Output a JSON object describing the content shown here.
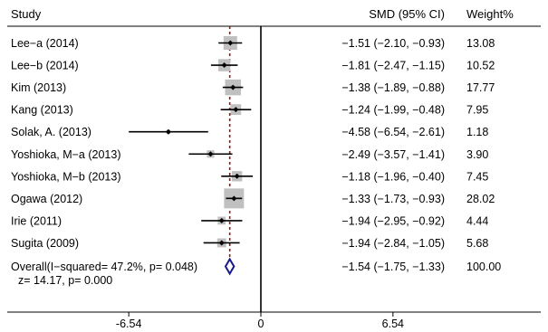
{
  "chart_data": {
    "type": "forest",
    "headers": {
      "study": "Study",
      "effect": "SMD (95% CI)",
      "weight": "Weight%"
    },
    "xlim": [
      -6.54,
      6.54
    ],
    "ticks": [
      {
        "value": -6.54,
        "label": "-6.54"
      },
      {
        "value": 0,
        "label": "0"
      },
      {
        "value": 6.54,
        "label": "6.54"
      }
    ],
    "null_line": 0,
    "overall_line": -1.54,
    "studies": [
      {
        "label": "Lee−a (2014)",
        "smd": -1.51,
        "lower": -2.1,
        "upper": -0.93,
        "ci_text": "−1.51 (−2.10, −0.93)",
        "weight": 13.08,
        "weight_text": "13.08"
      },
      {
        "label": "Lee−b (2014)",
        "smd": -1.81,
        "lower": -2.47,
        "upper": -1.15,
        "ci_text": "−1.81 (−2.47, −1.15)",
        "weight": 10.52,
        "weight_text": "10.52"
      },
      {
        "label": "Kim (2013)",
        "smd": -1.38,
        "lower": -1.89,
        "upper": -0.88,
        "ci_text": "−1.38 (−1.89, −0.88)",
        "weight": 17.77,
        "weight_text": "17.77"
      },
      {
        "label": "Kang (2013)",
        "smd": -1.24,
        "lower": -1.99,
        "upper": -0.48,
        "ci_text": "−1.24 (−1.99, −0.48)",
        "weight": 7.95,
        "weight_text": "7.95"
      },
      {
        "label": "Solak, A. (2013)",
        "smd": -4.58,
        "lower": -6.54,
        "upper": -2.61,
        "ci_text": "−4.58 (−6.54, −2.61)",
        "weight": 1.18,
        "weight_text": "1.18"
      },
      {
        "label": "Yoshioka, M−a (2013)",
        "smd": -2.49,
        "lower": -3.57,
        "upper": -1.41,
        "ci_text": "−2.49 (−3.57, −1.41)",
        "weight": 3.9,
        "weight_text": "3.90"
      },
      {
        "label": "Yoshioka, M−b (2013)",
        "smd": -1.18,
        "lower": -1.96,
        "upper": -0.4,
        "ci_text": "−1.18 (−1.96, −0.40)",
        "weight": 7.45,
        "weight_text": "7.45"
      },
      {
        "label": "Ogawa (2012)",
        "smd": -1.33,
        "lower": -1.73,
        "upper": -0.93,
        "ci_text": "−1.33 (−1.73, −0.93)",
        "weight": 28.02,
        "weight_text": "28.02"
      },
      {
        "label": "Irie (2011)",
        "smd": -1.94,
        "lower": -2.95,
        "upper": -0.92,
        "ci_text": "−1.94 (−2.95, −0.92)",
        "weight": 4.44,
        "weight_text": "4.44"
      },
      {
        "label": "Sugita (2009)",
        "smd": -1.94,
        "lower": -2.84,
        "upper": -1.05,
        "ci_text": "−1.94 (−2.84, −1.05)",
        "weight": 5.68,
        "weight_text": "5.68"
      }
    ],
    "overall": {
      "label": "Overall(I−squared= 47.2%, p= 0.048)",
      "smd": -1.54,
      "lower": -1.75,
      "upper": -1.33,
      "ci_text": "−1.54 (−1.75, −1.33)",
      "weight": 100.0,
      "weight_text": "100.00",
      "test_label": "z= 14.17, p= 0.000"
    },
    "colors": {
      "box": "#c0c0c0",
      "line": "#000000",
      "diamond": "#1a1a8c",
      "overall_line": "#8b1a1a"
    }
  }
}
